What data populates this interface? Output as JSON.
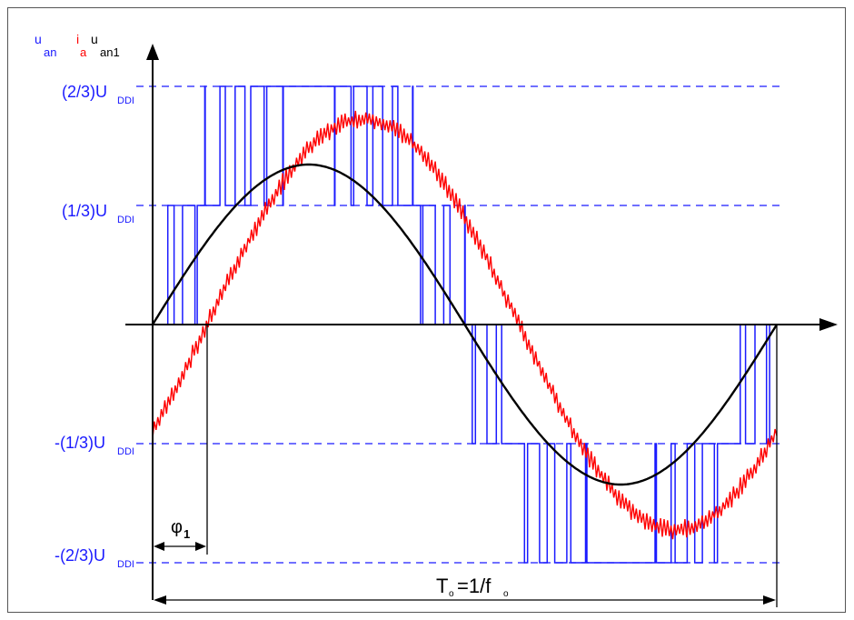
{
  "labels": {
    "y_axis": {
      "u": "u",
      "sub1": "an",
      "i": "i",
      "sub2": "a",
      "u2": "u",
      "sub3": "an1"
    },
    "level_2_3": {
      "main": "(2/3)U",
      "sub": "DDI"
    },
    "level_1_3": {
      "main": "(1/3)U",
      "sub": "DDI"
    },
    "level_m1_3": {
      "main": "-(1/3)U",
      "sub": "DDI"
    },
    "level_m2_3": {
      "main": "-(2/3)U",
      "sub": "DDI"
    },
    "phi": {
      "main": "φ",
      "sub": "1"
    },
    "period": {
      "t": "T",
      "tsub": "o",
      "mid": "=1/f",
      "fsub": "o"
    }
  },
  "colors": {
    "pwm": "#1a1aff",
    "current": "#ff0000",
    "fundamental": "#000000",
    "dashed": "#1a1aff"
  }
}
